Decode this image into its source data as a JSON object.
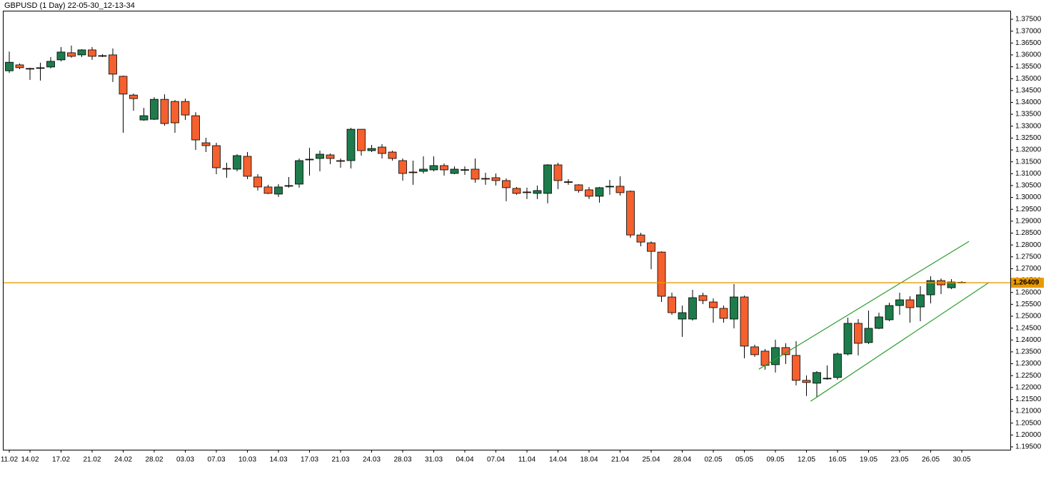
{
  "chart_data": {
    "type": "candlestick",
    "title": "GBPUSD (1 Day) 22-05-30_12-13-34",
    "categories": [
      "11.02",
      null,
      "14.02",
      null,
      null,
      "17.02",
      null,
      null,
      "21.02",
      null,
      null,
      "24.02",
      null,
      null,
      "28.02",
      null,
      null,
      "03.03",
      null,
      null,
      "07.03",
      null,
      null,
      "10.03",
      null,
      null,
      "14.03",
      null,
      null,
      "17.03",
      null,
      null,
      "21.03",
      null,
      null,
      "24.03",
      null,
      null,
      "28.03",
      null,
      null,
      "31.03",
      null,
      null,
      "04.04",
      null,
      null,
      "07.04",
      null,
      null,
      "11.04",
      null,
      null,
      "14.04",
      null,
      null,
      "18.04",
      null,
      null,
      "21.04",
      null,
      null,
      "25.04",
      null,
      null,
      "28.04",
      null,
      null,
      "02.05",
      null,
      null,
      "05.05",
      null,
      null,
      "09.05",
      null,
      null,
      "12.05",
      null,
      null,
      "16.05",
      null,
      null,
      "19.05",
      null,
      null,
      "23.05",
      null,
      null,
      "26.05",
      null,
      null,
      "30.05"
    ],
    "open": [
      1.3533,
      1.3558,
      1.3543,
      1.3544,
      1.3549,
      1.3579,
      1.3609,
      1.36,
      1.3621,
      1.3597,
      1.36,
      1.351,
      1.3431,
      1.3326,
      1.3329,
      1.3413,
      1.3404,
      1.3404,
      1.3344,
      1.323,
      1.3218,
      1.3122,
      1.3119,
      1.3173,
      1.3086,
      1.3044,
      1.3014,
      1.3049,
      1.3056,
      1.316,
      1.3164,
      1.3179,
      1.3155,
      1.3155,
      1.3287,
      1.3197,
      1.3212,
      1.3191,
      1.3155,
      1.3107,
      1.311,
      1.3116,
      1.3134,
      1.3101,
      1.3116,
      1.3119,
      1.308,
      1.3083,
      1.3071,
      1.3038,
      1.3023,
      1.3017,
      1.3017,
      1.3137,
      1.3066,
      1.3053,
      1.3032,
      1.3005,
      1.3046,
      1.3047,
      1.3026,
      1.2842,
      1.2809,
      1.277,
      1.2581,
      1.2488,
      1.2488,
      1.2587,
      1.256,
      1.2533,
      1.2488,
      1.2581,
      1.2371,
      1.2353,
      1.2296,
      1.2368,
      1.2335,
      1.223,
      1.2218,
      1.2238,
      1.2242,
      1.2341,
      1.247,
      1.2389,
      1.2449,
      1.2485,
      1.2545,
      1.2569,
      1.2539,
      1.259,
      1.265,
      1.262,
      1.2643
    ],
    "high": [
      1.3614,
      1.3564,
      1.3546,
      1.3567,
      1.3591,
      1.3633,
      1.3639,
      1.3624,
      1.3633,
      1.3603,
      1.3627,
      1.3513,
      1.3437,
      1.3377,
      1.3422,
      1.3434,
      1.341,
      1.3416,
      1.3359,
      1.3251,
      1.323,
      1.3146,
      1.3182,
      1.3191,
      1.3098,
      1.3053,
      1.3056,
      1.3086,
      1.3164,
      1.3209,
      1.3197,
      1.3185,
      1.3164,
      1.3293,
      1.3287,
      1.3221,
      1.3224,
      1.3197,
      1.3164,
      1.3155,
      1.3173,
      1.3173,
      1.3143,
      1.3131,
      1.3131,
      1.3164,
      1.3104,
      1.3101,
      1.308,
      1.3044,
      1.3041,
      1.305,
      1.314,
      1.3146,
      1.3077,
      1.3056,
      1.3044,
      1.3044,
      1.3074,
      1.3089,
      1.3029,
      1.2851,
      1.2815,
      1.2773,
      1.2599,
      1.2545,
      1.2611,
      1.2599,
      1.2575,
      1.2545,
      1.2635,
      1.2587,
      1.238,
      1.2362,
      1.2401,
      1.2386,
      1.2395,
      1.2251,
      1.2269,
      1.2293,
      1.2347,
      1.2494,
      1.2488,
      1.2524,
      1.2515,
      1.2557,
      1.2599,
      1.2584,
      1.2626,
      1.2668,
      1.2659,
      1.2656,
      1.2647
    ],
    "low": [
      1.3524,
      1.354,
      1.3495,
      1.3492,
      1.3543,
      1.3573,
      1.3588,
      1.3591,
      1.3579,
      1.3591,
      1.3486,
      1.3272,
      1.3365,
      1.3323,
      1.3326,
      1.3302,
      1.3272,
      1.3326,
      1.32,
      1.3191,
      1.3098,
      1.3083,
      1.311,
      1.3077,
      1.3029,
      1.3014,
      1.3002,
      1.3041,
      1.3041,
      1.3092,
      1.311,
      1.314,
      1.3125,
      1.3122,
      1.3176,
      1.3191,
      1.3164,
      1.3155,
      1.3071,
      1.3053,
      1.3101,
      1.311,
      1.3092,
      1.3098,
      1.3095,
      1.3062,
      1.3053,
      1.305,
      1.2984,
      1.3011,
      1.2993,
      1.2993,
      1.2975,
      1.3035,
      1.3053,
      1.302,
      1.2993,
      1.2978,
      1.3011,
      1.3008,
      1.283,
      1.2794,
      1.2698,
      1.256,
      1.2506,
      1.2413,
      1.2482,
      1.2551,
      1.2473,
      1.2473,
      1.2449,
      1.2323,
      1.2329,
      1.2275,
      1.2263,
      1.2299,
      1.2209,
      1.2164,
      1.2158,
      1.2233,
      1.2233,
      1.2335,
      1.2335,
      1.2383,
      1.2446,
      1.2479,
      1.2506,
      1.2473,
      1.2479,
      1.2554,
      1.2593,
      1.2614,
      1.2638
    ],
    "close": [
      1.3569,
      1.3546,
      1.3542,
      1.3546,
      1.3573,
      1.3612,
      1.3594,
      1.3621,
      1.3594,
      1.3596,
      1.3519,
      1.3435,
      1.3416,
      1.3344,
      1.3413,
      1.3311,
      1.3314,
      1.3347,
      1.3242,
      1.3218,
      1.3125,
      1.312,
      1.3176,
      1.3089,
      1.3044,
      1.3017,
      1.3044,
      1.305,
      1.3155,
      1.3161,
      1.3182,
      1.3164,
      1.3154,
      1.3287,
      1.3197,
      1.3206,
      1.3185,
      1.3164,
      1.3101,
      1.3106,
      1.3119,
      1.3134,
      1.3116,
      1.3119,
      1.3117,
      1.3077,
      1.3079,
      1.3071,
      1.3041,
      1.3017,
      1.3022,
      1.3029,
      1.3137,
      1.3071,
      1.3065,
      1.3029,
      1.3005,
      1.3041,
      1.3047,
      1.302,
      1.2842,
      1.2812,
      1.2773,
      1.2584,
      1.2515,
      1.2515,
      1.2578,
      1.2566,
      1.2536,
      1.2491,
      1.2581,
      1.2374,
      1.2338,
      1.2293,
      1.2368,
      1.2338,
      1.223,
      1.2221,
      1.2263,
      1.2239,
      1.2341,
      1.247,
      1.2386,
      1.2449,
      1.2497,
      1.2545,
      1.2569,
      1.2536,
      1.259,
      1.265,
      1.2632,
      1.2644,
      1.2641
    ],
    "up_color": "#1e7b4b",
    "down_color": "#f4602e",
    "price_line": {
      "value": 1.26409,
      "color": "#e89a00"
    },
    "trendlines": [
      {
        "x": [
          72.4,
          92.7
        ],
        "y": [
          1.2277,
          1.2815
        ],
        "color": "#2a9d2a"
      },
      {
        "x": [
          77.4,
          94.6
        ],
        "y": [
          1.2142,
          1.2641
        ],
        "color": "#2a9d2a"
      }
    ],
    "ylim": [
      1.1938,
      1.3786
    ],
    "yticks": [
      {
        "value": 1.195,
        "label": "1.19500"
      },
      {
        "value": 1.2,
        "label": "1.20000"
      },
      {
        "value": 1.205,
        "label": "1.20500"
      },
      {
        "value": 1.21,
        "label": "1.21000"
      },
      {
        "value": 1.215,
        "label": "1.21500"
      },
      {
        "value": 1.22,
        "label": "1.22000"
      },
      {
        "value": 1.225,
        "label": "1.22500"
      },
      {
        "value": 1.23,
        "label": "1.23000"
      },
      {
        "value": 1.235,
        "label": "1.23500"
      },
      {
        "value": 1.24,
        "label": "1.24000"
      },
      {
        "value": 1.245,
        "label": "1.24500"
      },
      {
        "value": 1.25,
        "label": "1.25000"
      },
      {
        "value": 1.255,
        "label": "1.25500"
      },
      {
        "value": 1.26,
        "label": "1.26000"
      },
      {
        "value": 1.265,
        "label": "1.26500"
      },
      {
        "value": 1.27,
        "label": "1.27000"
      },
      {
        "value": 1.275,
        "label": "1.27500"
      },
      {
        "value": 1.28,
        "label": "1.28000"
      },
      {
        "value": 1.285,
        "label": "1.28500"
      },
      {
        "value": 1.29,
        "label": "1.29000"
      },
      {
        "value": 1.295,
        "label": "1.29500"
      },
      {
        "value": 1.3,
        "label": "1.30000"
      },
      {
        "value": 1.305,
        "label": "1.30500"
      },
      {
        "value": 1.31,
        "label": "1.31000"
      },
      {
        "value": 1.315,
        "label": "1.31500"
      },
      {
        "value": 1.32,
        "label": "1.32000"
      },
      {
        "value": 1.325,
        "label": "1.32500"
      },
      {
        "value": 1.33,
        "label": "1.33000"
      },
      {
        "value": 1.335,
        "label": "1.33500"
      },
      {
        "value": 1.34,
        "label": "1.34000"
      },
      {
        "value": 1.345,
        "label": "1.34500"
      },
      {
        "value": 1.35,
        "label": "1.35000"
      },
      {
        "value": 1.355,
        "label": "1.35500"
      },
      {
        "value": 1.36,
        "label": "1.36000"
      },
      {
        "value": 1.365,
        "label": "1.36500"
      },
      {
        "value": 1.37,
        "label": "1.37000"
      },
      {
        "value": 1.375,
        "label": "1.37500"
      }
    ]
  }
}
